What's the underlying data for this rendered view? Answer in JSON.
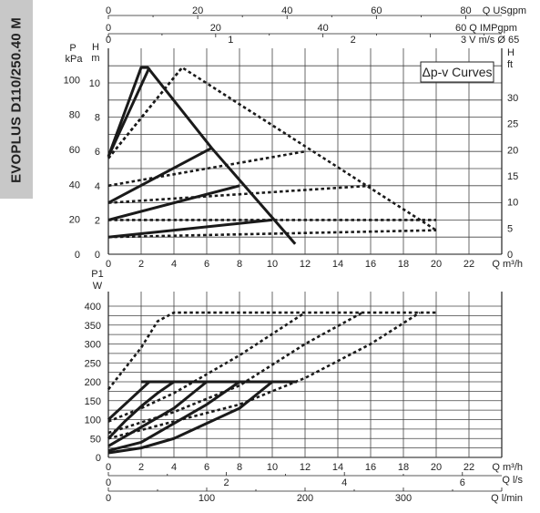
{
  "model_label": "EVOPLUS D110/250.40 M",
  "legend_label": "Δp-v Curves",
  "chart_data": [
    {
      "type": "line",
      "name": "head-chart",
      "top_axes": [
        {
          "label": "Q USgpm",
          "max": 88.06,
          "ticks": [
            0,
            20,
            40,
            60,
            80
          ]
        },
        {
          "label": "Q IMPgpm",
          "max": 73.33,
          "ticks": [
            0,
            20,
            40,
            60
          ]
        },
        {
          "label": "V m/s Ø 65",
          "max": 3.0,
          "ticks": [
            0,
            1,
            2,
            3
          ],
          "tick_labels": [
            "0",
            "1",
            "2",
            "3"
          ]
        }
      ],
      "x_axis": {
        "label": "Q m³/h",
        "min": 0,
        "max": 24,
        "ticks": [
          0,
          2,
          4,
          6,
          8,
          10,
          12,
          14,
          16,
          18,
          20,
          22
        ]
      },
      "y_left_pressure": {
        "label": "kPa",
        "title": "P",
        "ticks": [
          0,
          20,
          40,
          60,
          80,
          100
        ]
      },
      "y_left_head": {
        "label": "m",
        "title": "H",
        "min": 0,
        "max": 11,
        "ticks": [
          0,
          2,
          4,
          6,
          8,
          10
        ]
      },
      "y_right_head": {
        "label": "ft",
        "title": "H",
        "max": 36.09,
        "ticks": [
          0,
          5,
          10,
          15,
          20,
          25,
          30
        ]
      },
      "series": [
        {
          "style": "solid",
          "x": [
            0,
            2.0,
            2.4,
            6.3,
            11.4
          ],
          "y": [
            5.7,
            10.9,
            10.9,
            6.2,
            0.6
          ]
        },
        {
          "style": "solid",
          "x": [
            0,
            2.5
          ],
          "y": [
            5.7,
            10.9
          ]
        },
        {
          "style": "solid",
          "x": [
            0,
            6.3
          ],
          "y": [
            3.0,
            6.2
          ]
        },
        {
          "style": "solid",
          "x": [
            0,
            8.0
          ],
          "y": [
            2.0,
            4.0
          ]
        },
        {
          "style": "solid",
          "x": [
            0,
            10.0
          ],
          "y": [
            1.0,
            2.0
          ]
        },
        {
          "style": "dotted",
          "x": [
            0,
            4.5,
            20.0
          ],
          "y": [
            5.6,
            10.9,
            1.4
          ]
        },
        {
          "style": "dotted",
          "x": [
            0,
            4.5
          ],
          "y": [
            5.6,
            10.9
          ]
        },
        {
          "style": "dotted",
          "x": [
            0,
            12.0
          ],
          "y": [
            4.0,
            6.0
          ]
        },
        {
          "style": "dotted",
          "x": [
            0,
            16.0
          ],
          "y": [
            3.0,
            4.0
          ]
        },
        {
          "style": "dotted",
          "x": [
            0,
            20.0
          ],
          "y": [
            2.0,
            2.0
          ]
        },
        {
          "style": "dotted",
          "x": [
            0,
            20.0
          ],
          "y": [
            1.0,
            1.4
          ]
        }
      ]
    },
    {
      "type": "line",
      "name": "power-chart",
      "x_axis": {
        "label": "Q m³/h",
        "min": 0,
        "max": 24,
        "ticks": [
          0,
          2,
          4,
          6,
          8,
          10,
          12,
          14,
          16,
          18,
          20,
          22
        ]
      },
      "y_axis": {
        "title": "P1",
        "label": "W",
        "min": 0,
        "max": 400,
        "ticks": [
          0,
          50,
          100,
          150,
          200,
          250,
          300,
          350,
          400
        ]
      },
      "bottom_axes": [
        {
          "label": "Q l/s",
          "max": 6.667,
          "ticks": [
            0,
            2,
            4,
            6
          ]
        },
        {
          "label": "Q l/min",
          "max": 400,
          "ticks": [
            0,
            100,
            200,
            300
          ]
        }
      ],
      "series": [
        {
          "style": "solid",
          "x": [
            0,
            2.5
          ],
          "y": [
            100,
            200
          ]
        },
        {
          "style": "solid",
          "x": [
            2.0,
            11.5
          ],
          "y": [
            200,
            200
          ]
        },
        {
          "style": "solid",
          "x": [
            0,
            1.0,
            2.0,
            3.0,
            4.0
          ],
          "y": [
            50,
            95,
            135,
            170,
            200
          ]
        },
        {
          "style": "solid",
          "x": [
            0,
            2.0,
            4.0,
            6.0
          ],
          "y": [
            30,
            80,
            130,
            200
          ]
        },
        {
          "style": "solid",
          "x": [
            0,
            2.0,
            4.0,
            6.0,
            8.0
          ],
          "y": [
            18,
            40,
            90,
            140,
            200
          ]
        },
        {
          "style": "solid",
          "x": [
            0,
            2.0,
            4.0,
            6.0,
            8.0,
            10.0
          ],
          "y": [
            12,
            25,
            50,
            90,
            130,
            200
          ]
        },
        {
          "style": "dotted",
          "x": [
            0,
            2.0,
            3.0,
            4.0,
            20.0
          ],
          "y": [
            180,
            290,
            360,
            383,
            383
          ]
        },
        {
          "style": "dotted",
          "x": [
            2.0,
            11.5
          ],
          "y": [
            200,
            200
          ]
        },
        {
          "style": "dotted",
          "x": [
            0,
            2.0,
            4.0,
            8.0,
            12.0
          ],
          "y": [
            95,
            130,
            170,
            270,
            383
          ]
        },
        {
          "style": "dotted",
          "x": [
            0,
            4.0,
            8.0,
            12.0,
            15.5
          ],
          "y": [
            65,
            120,
            190,
            300,
            383
          ]
        },
        {
          "style": "dotted",
          "x": [
            0,
            4.0,
            8.0,
            12.0,
            16.0,
            19.0
          ],
          "y": [
            50,
            95,
            140,
            210,
            300,
            383
          ]
        }
      ]
    }
  ]
}
